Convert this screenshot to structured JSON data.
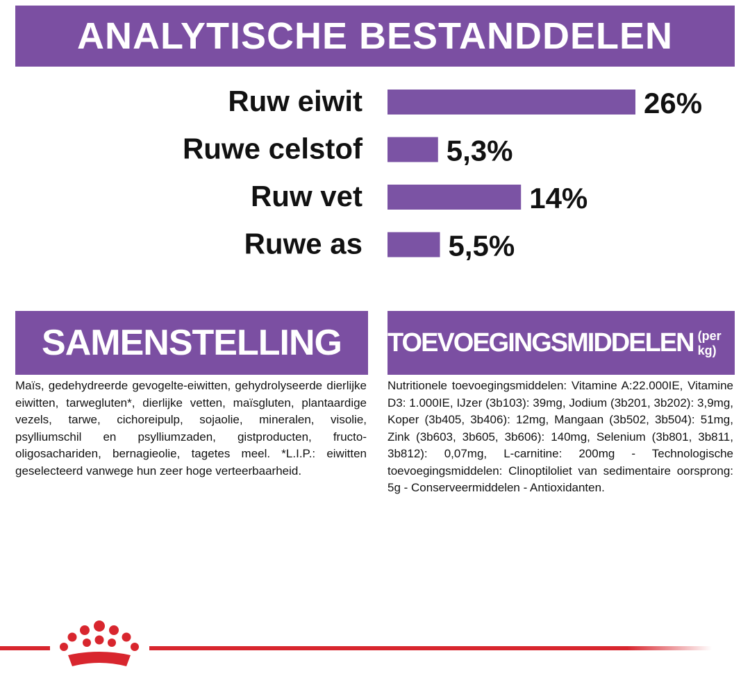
{
  "chart_data": {
    "type": "bar",
    "orientation": "horizontal",
    "title": "ANALYTISCHE BESTANDDELEN",
    "categories": [
      "Ruw eiwit",
      "Ruwe celstof",
      "Ruw vet",
      "Ruwe as"
    ],
    "values": [
      26,
      5.3,
      14,
      5.5
    ],
    "value_labels": [
      "26%",
      "5,3%",
      "14%",
      "5,5%"
    ],
    "color": "#7b53a4"
  },
  "samenstelling": {
    "title": "SAMENSTELLING",
    "text": "Maïs, gedehydreerde gevogelte-eiwitten, gehydrolyseerde dierlijke eiwitten, tarwegluten*, dierlijke vetten, maïsgluten, plantaardige vezels, tarwe, cichoreipulp, sojaolie, mineralen, visolie, psylliumschil en psylliumzaden, gistproducten, fructo-oligosachariden, bernagieolie, tagetes meel. *L.I.P.: eiwitten geselecteerd vanwege hun zeer hoge verteerbaarheid."
  },
  "toevoegingsmiddelen": {
    "title": "TOEVOEGINGSMIDDELEN",
    "title_suffix": "(per kg)",
    "text": "Nutritionele toevoegingsmiddelen: Vitamine A:22.000IE, Vitamine D3: 1.000IE, IJzer (3b103): 39mg, Jodium (3b201, 3b202): 3,9mg, Koper (3b405, 3b406): 12mg, Mangaan (3b502, 3b504): 51mg, Zink (3b603, 3b605, 3b606): 140mg, Selenium (3b801, 3b811, 3b812): 0,07mg, L-carnitine: 200mg - Technologische toevoegingsmiddelen: Clinoptiloliet van sedimentaire oorsprong: 5g - Conserveermiddelen - Antioxidanten."
  }
}
